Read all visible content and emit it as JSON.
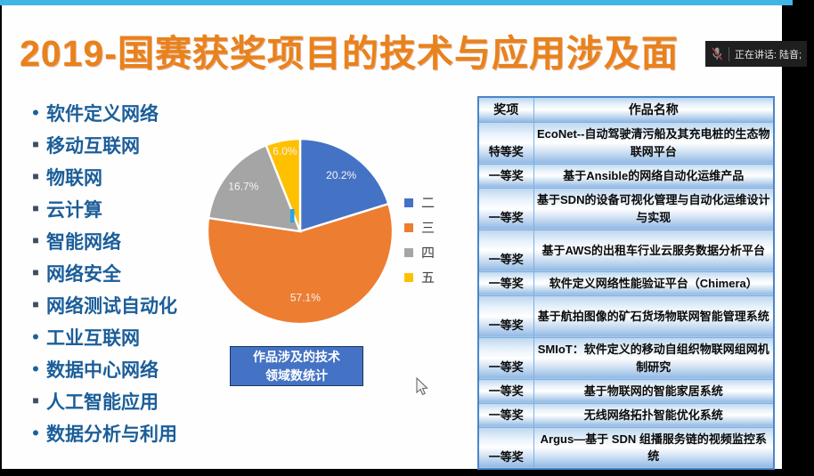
{
  "meeting_bar": {
    "speaking_status": "正在讲话: 陆音;"
  },
  "slide": {
    "title": "2019-国赛获奖项目的技术与应用涉及面",
    "tech_list": [
      {
        "bullet": "•",
        "label": "软件定义网络"
      },
      {
        "bullet": "■",
        "label": "移动互联网"
      },
      {
        "bullet": "■",
        "label": "物联网"
      },
      {
        "bullet": "■",
        "label": "云计算"
      },
      {
        "bullet": "■",
        "label": "智能网络"
      },
      {
        "bullet": "■",
        "label": "网络安全"
      },
      {
        "bullet": "■",
        "label": "网络测试自动化"
      },
      {
        "bullet": "•",
        "label": "工业互联网"
      },
      {
        "bullet": "•",
        "label": "数据中心网络"
      },
      {
        "bullet": "■",
        "label": "人工智能应用"
      },
      {
        "bullet": "•",
        "label": "数据分析与利用"
      }
    ],
    "caption_line1": "作品涉及的技术",
    "caption_line2": "领域数统计"
  },
  "chart_data": {
    "type": "pie",
    "title": "作品涉及的技术领域数统计",
    "categories": [
      "二",
      "三",
      "四",
      "五"
    ],
    "values": [
      20.2,
      57.1,
      16.7,
      6.0
    ],
    "labels": [
      "20.2%",
      "57.1%",
      "16.7%",
      "6.0%"
    ],
    "colors": [
      "#4472C4",
      "#ED7D31",
      "#A5A5A5",
      "#FFC000"
    ],
    "legend_position": "right",
    "start_angle_deg": 0,
    "direction": "clockwise"
  },
  "awards_table": {
    "headers": [
      "奖项",
      "作品名称"
    ],
    "rows": [
      {
        "award": "特等奖",
        "work": "EcoNet--自动驾驶清污船及其充电桩的生态物联网平台"
      },
      {
        "award": "一等奖",
        "work": "基于Ansible的网络自动化运维产品"
      },
      {
        "award": "一等奖",
        "work": "基于SDN的设备可视化管理与自动化运维设计与实现"
      },
      {
        "award": "一等奖",
        "work": "基于AWS的出租车行业云服务数据分析平台"
      },
      {
        "award": "一等奖",
        "work": "软件定义网络性能验证平台（Chimera）"
      },
      {
        "award": "一等奖",
        "work": "基于航拍图像的矿石货场物联网智能管理系统"
      },
      {
        "award": "一等奖",
        "work": "SMIoT：软件定义的移动自组织物联网组网机制研究"
      },
      {
        "award": "一等奖",
        "work": "基于物联网的智能家居系统"
      },
      {
        "award": "一等奖",
        "work": "无线网络拓扑智能优化系统"
      },
      {
        "award": "一等奖",
        "work": "Argus—基于 SDN 组播服务链的视频监控系统"
      }
    ]
  }
}
